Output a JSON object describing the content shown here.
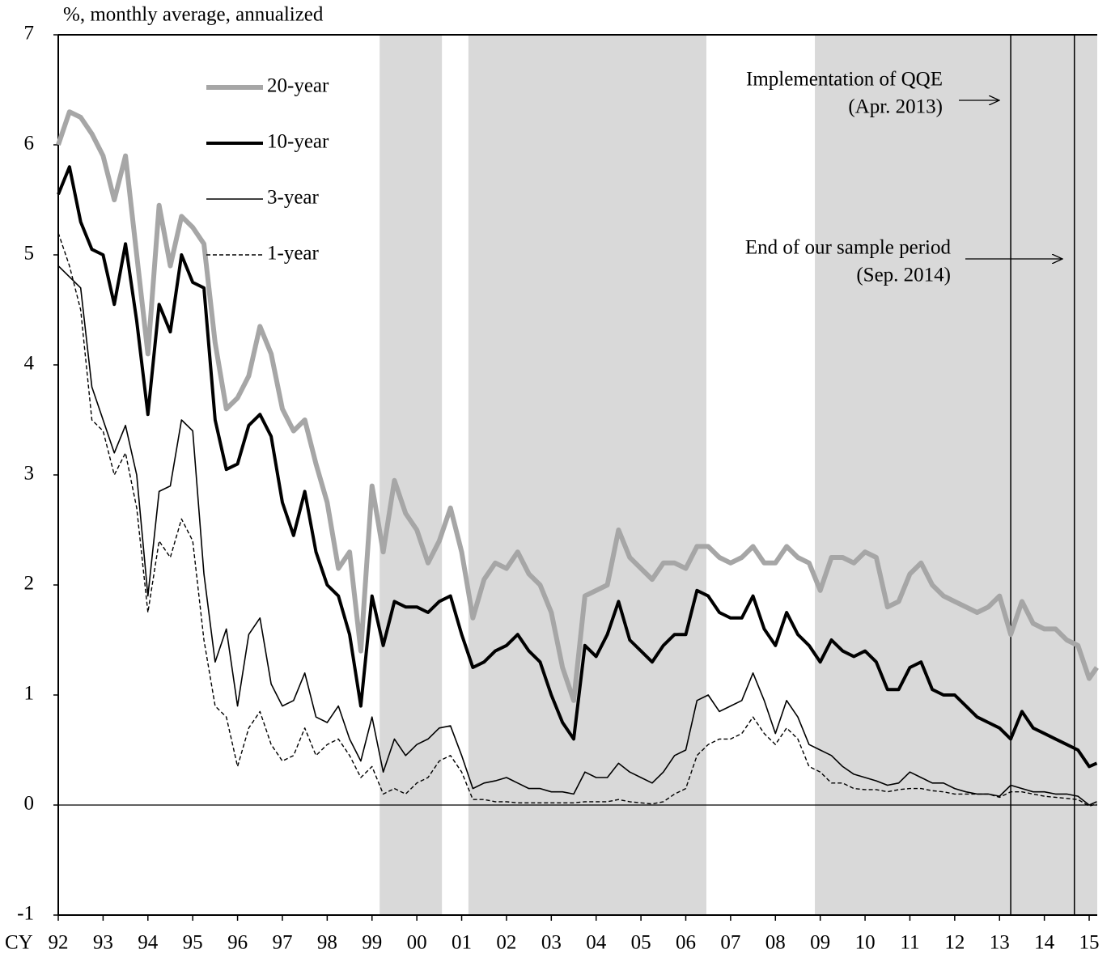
{
  "chart_data": {
    "type": "line",
    "y_label": "%, monthly average, annualized",
    "x_label": "CY",
    "xlim": [
      1992,
      2015.18
    ],
    "ylim": [
      -1,
      7
    ],
    "yticks": [
      -1,
      0,
      1,
      2,
      3,
      4,
      5,
      6,
      7
    ],
    "xticks": [
      {
        "value": 1992,
        "label": "92"
      },
      {
        "value": 1993,
        "label": "93"
      },
      {
        "value": 1994,
        "label": "94"
      },
      {
        "value": 1995,
        "label": "95"
      },
      {
        "value": 1996,
        "label": "96"
      },
      {
        "value": 1997,
        "label": "97"
      },
      {
        "value": 1998,
        "label": "98"
      },
      {
        "value": 1999,
        "label": "99"
      },
      {
        "value": 2000,
        "label": "00"
      },
      {
        "value": 2001,
        "label": "01"
      },
      {
        "value": 2002,
        "label": "02"
      },
      {
        "value": 2003,
        "label": "03"
      },
      {
        "value": 2004,
        "label": "04"
      },
      {
        "value": 2005,
        "label": "05"
      },
      {
        "value": 2006,
        "label": "06"
      },
      {
        "value": 2007,
        "label": "07"
      },
      {
        "value": 2008,
        "label": "08"
      },
      {
        "value": 2009,
        "label": "09"
      },
      {
        "value": 2010,
        "label": "10"
      },
      {
        "value": 2011,
        "label": "11"
      },
      {
        "value": 2012,
        "label": "12"
      },
      {
        "value": 2013,
        "label": "13"
      },
      {
        "value": 2014,
        "label": "14"
      },
      {
        "value": 2015,
        "label": "15"
      }
    ],
    "legend": "upper left",
    "zero_line": 0,
    "shaded_periods": [
      [
        1999.17,
        2000.56
      ],
      [
        2001.15,
        2006.46
      ],
      [
        2008.88,
        2015.18
      ]
    ],
    "shade_color": "#d9d9d9",
    "vlines": [
      {
        "x": 2013.25,
        "text": "Implementation of QQE",
        "subtext": "(Apr. 2013)"
      },
      {
        "x": 2014.67,
        "text": "End of our sample period",
        "subtext": "(Sep. 2014)"
      }
    ],
    "x": [
      1992,
      1992.25,
      1992.5,
      1992.75,
      1993,
      1993.25,
      1993.5,
      1993.75,
      1994,
      1994.25,
      1994.5,
      1994.75,
      1995,
      1995.25,
      1995.5,
      1995.75,
      1996,
      1996.25,
      1996.5,
      1996.75,
      1997,
      1997.25,
      1997.5,
      1997.75,
      1998,
      1998.25,
      1998.5,
      1998.75,
      1999,
      1999.25,
      1999.5,
      1999.75,
      2000,
      2000.25,
      2000.5,
      2000.75,
      2001,
      2001.25,
      2001.5,
      2001.75,
      2002,
      2002.25,
      2002.5,
      2002.75,
      2003,
      2003.25,
      2003.5,
      2003.75,
      2004,
      2004.25,
      2004.5,
      2004.75,
      2005,
      2005.25,
      2005.5,
      2005.75,
      2006,
      2006.25,
      2006.5,
      2006.75,
      2007,
      2007.25,
      2007.5,
      2007.75,
      2008,
      2008.25,
      2008.5,
      2008.75,
      2009,
      2009.25,
      2009.5,
      2009.75,
      2010,
      2010.25,
      2010.5,
      2010.75,
      2011,
      2011.25,
      2011.5,
      2011.75,
      2012,
      2012.25,
      2012.5,
      2012.75,
      2013,
      2013.25,
      2013.5,
      2013.75,
      2014,
      2014.25,
      2014.5,
      2014.75,
      2015,
      2015.17
    ],
    "series": [
      {
        "name": "20-year",
        "color": "#a6a6a6",
        "style": "thick",
        "values": [
          6.0,
          6.3,
          6.25,
          6.1,
          5.9,
          5.5,
          5.9,
          5.0,
          4.1,
          5.45,
          4.9,
          5.35,
          5.25,
          5.1,
          4.2,
          3.6,
          3.7,
          3.9,
          4.35,
          4.1,
          3.6,
          3.4,
          3.5,
          3.1,
          2.75,
          2.15,
          2.3,
          1.4,
          2.9,
          2.3,
          2.95,
          2.65,
          2.5,
          2.2,
          2.4,
          2.7,
          2.3,
          1.7,
          2.05,
          2.2,
          2.15,
          2.3,
          2.1,
          2.0,
          1.75,
          1.25,
          0.95,
          1.9,
          1.95,
          2.0,
          2.5,
          2.25,
          2.15,
          2.05,
          2.2,
          2.2,
          2.15,
          2.35,
          2.35,
          2.25,
          2.2,
          2.25,
          2.35,
          2.2,
          2.2,
          2.35,
          2.25,
          2.2,
          1.95,
          2.25,
          2.25,
          2.2,
          2.3,
          2.25,
          1.8,
          1.85,
          2.1,
          2.2,
          2.0,
          1.9,
          1.85,
          1.8,
          1.75,
          1.8,
          1.9,
          1.55,
          1.85,
          1.65,
          1.6,
          1.6,
          1.5,
          1.45,
          1.15,
          1.25
        ]
      },
      {
        "name": "10-year",
        "color": "#000000",
        "style": "bold",
        "values": [
          5.55,
          5.8,
          5.3,
          5.05,
          5.0,
          4.55,
          5.1,
          4.4,
          3.55,
          4.55,
          4.3,
          5.0,
          4.75,
          4.7,
          3.5,
          3.05,
          3.1,
          3.45,
          3.55,
          3.35,
          2.75,
          2.45,
          2.85,
          2.3,
          2.0,
          1.9,
          1.55,
          0.9,
          1.9,
          1.45,
          1.85,
          1.8,
          1.8,
          1.75,
          1.85,
          1.9,
          1.55,
          1.25,
          1.3,
          1.4,
          1.45,
          1.55,
          1.4,
          1.3,
          1.0,
          0.75,
          0.6,
          1.45,
          1.35,
          1.55,
          1.85,
          1.5,
          1.4,
          1.3,
          1.45,
          1.55,
          1.55,
          1.95,
          1.9,
          1.75,
          1.7,
          1.7,
          1.9,
          1.6,
          1.45,
          1.75,
          1.55,
          1.45,
          1.3,
          1.5,
          1.4,
          1.35,
          1.4,
          1.3,
          1.05,
          1.05,
          1.25,
          1.3,
          1.05,
          1.0,
          1.0,
          0.9,
          0.8,
          0.75,
          0.7,
          0.6,
          0.85,
          0.7,
          0.65,
          0.6,
          0.55,
          0.5,
          0.35,
          0.38
        ]
      },
      {
        "name": "3-year",
        "color": "#000000",
        "style": "solid",
        "values": [
          4.9,
          4.8,
          4.7,
          3.8,
          3.5,
          3.2,
          3.45,
          3.0,
          1.9,
          2.85,
          2.9,
          3.5,
          3.4,
          2.1,
          1.3,
          1.6,
          0.9,
          1.55,
          1.7,
          1.1,
          0.9,
          0.95,
          1.2,
          0.8,
          0.75,
          0.9,
          0.6,
          0.4,
          0.8,
          0.3,
          0.6,
          0.45,
          0.55,
          0.6,
          0.7,
          0.72,
          0.45,
          0.15,
          0.2,
          0.22,
          0.25,
          0.2,
          0.15,
          0.15,
          0.12,
          0.12,
          0.1,
          0.3,
          0.25,
          0.25,
          0.38,
          0.3,
          0.25,
          0.2,
          0.3,
          0.45,
          0.5,
          0.95,
          1.0,
          0.85,
          0.9,
          0.95,
          1.2,
          0.95,
          0.65,
          0.95,
          0.8,
          0.55,
          0.5,
          0.45,
          0.35,
          0.28,
          0.25,
          0.22,
          0.18,
          0.2,
          0.3,
          0.25,
          0.2,
          0.2,
          0.15,
          0.12,
          0.1,
          0.1,
          0.08,
          0.18,
          0.15,
          0.12,
          0.12,
          0.1,
          0.1,
          0.08,
          0.0,
          0.03
        ]
      },
      {
        "name": "1-year",
        "color": "#000000",
        "style": "dashed",
        "values": [
          5.2,
          4.9,
          4.5,
          3.5,
          3.4,
          3.0,
          3.2,
          2.7,
          1.75,
          2.4,
          2.25,
          2.6,
          2.4,
          1.5,
          0.9,
          0.8,
          0.35,
          0.7,
          0.85,
          0.55,
          0.4,
          0.45,
          0.7,
          0.45,
          0.55,
          0.6,
          0.45,
          0.25,
          0.35,
          0.1,
          0.15,
          0.1,
          0.2,
          0.25,
          0.4,
          0.45,
          0.3,
          0.05,
          0.05,
          0.03,
          0.03,
          0.02,
          0.02,
          0.02,
          0.02,
          0.02,
          0.02,
          0.03,
          0.03,
          0.03,
          0.05,
          0.03,
          0.02,
          0.01,
          0.03,
          0.1,
          0.15,
          0.45,
          0.55,
          0.6,
          0.6,
          0.65,
          0.8,
          0.65,
          0.55,
          0.7,
          0.6,
          0.35,
          0.3,
          0.2,
          0.2,
          0.15,
          0.14,
          0.14,
          0.12,
          0.14,
          0.15,
          0.15,
          0.13,
          0.12,
          0.1,
          0.1,
          0.1,
          0.1,
          0.07,
          0.12,
          0.12,
          0.1,
          0.08,
          0.07,
          0.06,
          0.05,
          -0.01,
          0.01
        ]
      }
    ]
  }
}
